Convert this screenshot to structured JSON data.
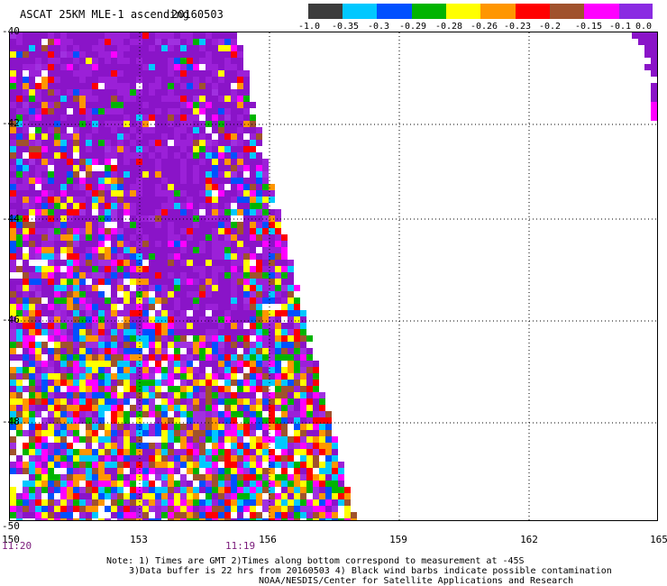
{
  "header": {
    "title": "ASCAT 25KM MLE-1 ascending",
    "date": "20160503"
  },
  "colorbar": {
    "labels": [
      "-1.0",
      "-0.35",
      "-0.3",
      "-0.29",
      "-0.28",
      "-0.26",
      "-0.23",
      "-0.2",
      "-0.15",
      "-0.1",
      "0.0"
    ],
    "colors": [
      "#3c3c3c",
      "#00c8ff",
      "#0050ff",
      "#00b400",
      "#ffff00",
      "#ff9600",
      "#ff0000",
      "#a0522d",
      "#ff00ff",
      "#8a2be2"
    ]
  },
  "axes": {
    "lat_ticks": [
      "-40",
      "-42",
      "-44",
      "-46",
      "-48",
      "-50"
    ],
    "lon_ticks": [
      "150",
      "153",
      "156",
      "159",
      "162",
      "165"
    ]
  },
  "times": {
    "left": "11:20",
    "mid": "11:19"
  },
  "notes": {
    "line1": "Note: 1) Times are GMT 2)Times along bottom correspond to measurement at -45S",
    "line2": "3)Data buffer is 22 hrs from 20160503 4) Black wind barbs indicate possible contamination",
    "line3": "NOAA/NESDIS/Center for Satellite Applications and Research"
  }
}
